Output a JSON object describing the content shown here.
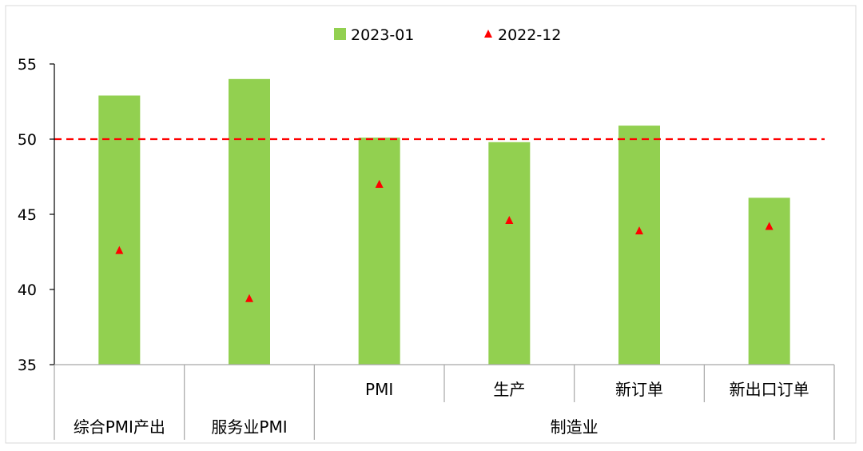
{
  "chart_data": {
    "type": "bar",
    "categories": [
      "综合PMI产出",
      "服务业PMI",
      "PMI",
      "生产",
      "新订单",
      "新出口订单"
    ],
    "group_labels": [
      "综合PMI产出",
      "服务业PMI",
      "制造业"
    ],
    "series": [
      {
        "name": "2023-01",
        "type": "bar",
        "color": "#92d050",
        "values": [
          52.9,
          54.0,
          50.1,
          49.8,
          50.9,
          46.1
        ]
      },
      {
        "name": "2022-12",
        "type": "marker",
        "marker": "triangle",
        "color": "#ff0000",
        "values": [
          42.6,
          39.4,
          47.0,
          44.6,
          43.9,
          44.2
        ]
      }
    ],
    "reference_line": {
      "value": 50,
      "style": "dashed",
      "color": "#ff0000"
    },
    "y_axis": {
      "min": 35,
      "max": 55,
      "ticks": [
        35,
        40,
        45,
        50,
        55
      ]
    },
    "legend_position": "top-center",
    "grid": false
  }
}
